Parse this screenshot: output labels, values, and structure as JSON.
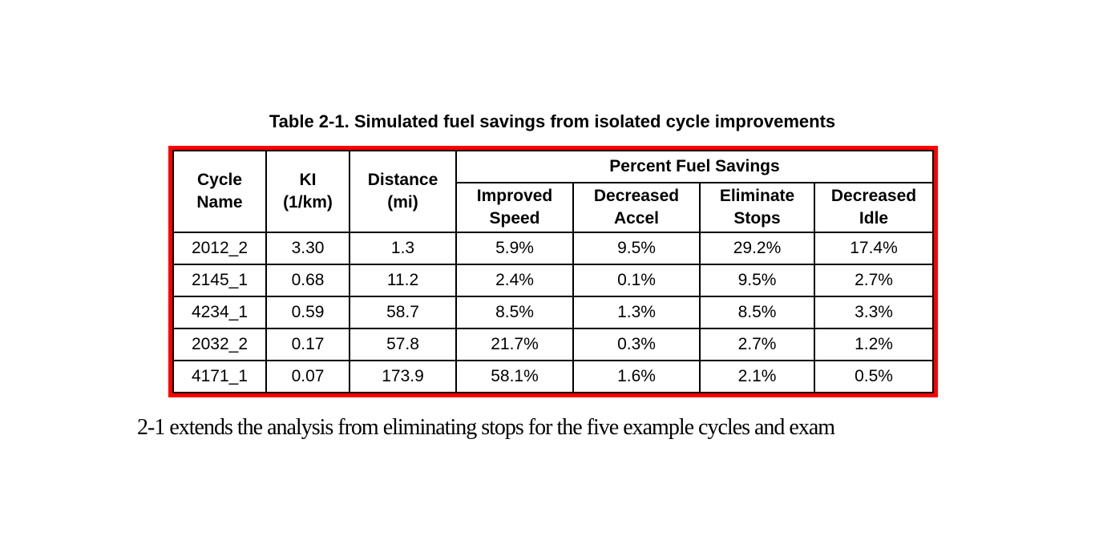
{
  "title": "Table 2-1. Simulated fuel savings from isolated cycle improvements",
  "table": {
    "border_color": "#ff0000",
    "grid_color": "#000000",
    "headers": {
      "cycle_name": "Cycle\nName",
      "ki": "KI\n(1/km)",
      "distance": "Distance\n(mi)",
      "group": "Percent Fuel Savings",
      "improved_speed": "Improved\nSpeed",
      "decreased_accel": "Decreased\nAccel",
      "eliminate_stops": "Eliminate\nStops",
      "decreased_idle": "Decreased\nIdle"
    },
    "rows": [
      {
        "cycle": "2012_2",
        "ki": "3.30",
        "distance": "1.3",
        "improved_speed": "5.9%",
        "decreased_accel": "9.5%",
        "eliminate_stops": "29.2%",
        "decreased_idle": "17.4%"
      },
      {
        "cycle": "2145_1",
        "ki": "0.68",
        "distance": "11.2",
        "improved_speed": "2.4%",
        "decreased_accel": "0.1%",
        "eliminate_stops": "9.5%",
        "decreased_idle": "2.7%"
      },
      {
        "cycle": "4234_1",
        "ki": "0.59",
        "distance": "58.7",
        "improved_speed": "8.5%",
        "decreased_accel": "1.3%",
        "eliminate_stops": "8.5%",
        "decreased_idle": "3.3%"
      },
      {
        "cycle": "2032_2",
        "ki": "0.17",
        "distance": "57.8",
        "improved_speed": "21.7%",
        "decreased_accel": "0.3%",
        "eliminate_stops": "2.7%",
        "decreased_idle": "1.2%"
      },
      {
        "cycle": "4171_1",
        "ki": "0.07",
        "distance": "173.9",
        "improved_speed": "58.1%",
        "decreased_accel": "1.6%",
        "eliminate_stops": "2.1%",
        "decreased_idle": "0.5%"
      }
    ]
  },
  "body_text": "2-1 extends the analysis from eliminating stops for the five example cycles and exam"
}
